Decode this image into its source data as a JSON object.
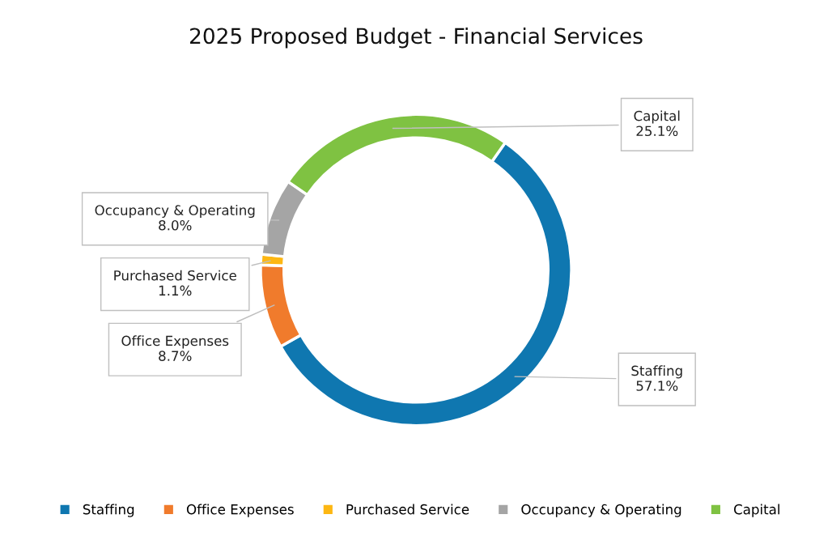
{
  "chart_data": {
    "type": "donut",
    "title": "2025 Proposed Budget - Financial Services",
    "categories": [
      "Staffing",
      "Office Expenses",
      "Purchased Service",
      "Occupancy & Operating",
      "Capital"
    ],
    "values": [
      57.1,
      8.7,
      1.1,
      8.0,
      25.1
    ],
    "value_labels": [
      "57.1%",
      "8.7%",
      "1.1%",
      "8.0%",
      "25.1%"
    ],
    "colors": [
      "#0f77b0",
      "#f07b2c",
      "#fdb713",
      "#a5a5a5",
      "#7fc242"
    ],
    "legend": "bottom"
  }
}
